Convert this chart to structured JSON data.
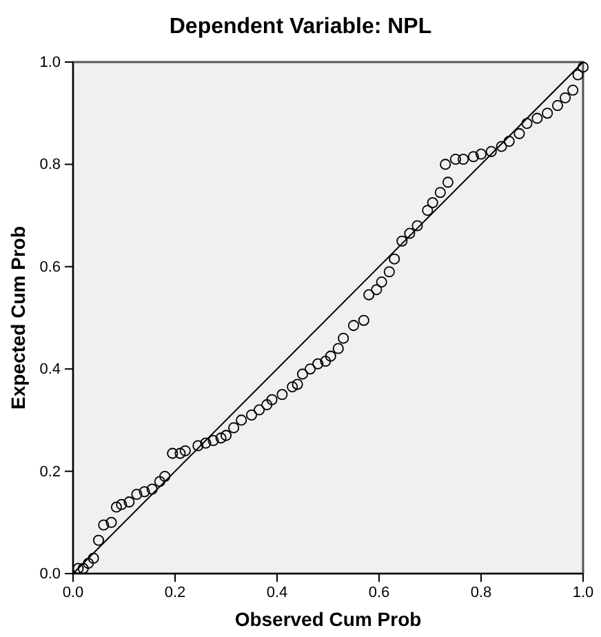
{
  "chart_data": {
    "type": "scatter",
    "title": "Dependent Variable: NPL",
    "xlabel": "Observed Cum Prob",
    "ylabel": "Expected Cum Prob",
    "xlim": [
      0,
      1
    ],
    "ylim": [
      0,
      1
    ],
    "xticks": [
      {
        "value": 0,
        "label": "0.0"
      },
      {
        "value": 0.2,
        "label": "0.2"
      },
      {
        "value": 0.4,
        "label": "0.4"
      },
      {
        "value": 0.6,
        "label": "0.6"
      },
      {
        "value": 0.8,
        "label": "0.8"
      },
      {
        "value": 1,
        "label": "1.0"
      }
    ],
    "yticks": [
      {
        "value": 0,
        "label": "0.0"
      },
      {
        "value": 0.2,
        "label": "0.2"
      },
      {
        "value": 0.4,
        "label": "0.4"
      },
      {
        "value": 0.6,
        "label": "0.6"
      },
      {
        "value": 0.8,
        "label": "0.8"
      },
      {
        "value": 1,
        "label": "1.0"
      }
    ],
    "grid": false,
    "series": [
      {
        "marker": "circle",
        "color": "#000000",
        "x": [
          0.01,
          0.02,
          0.03,
          0.04,
          0.05,
          0.06,
          0.075,
          0.085,
          0.095,
          0.11,
          0.125,
          0.14,
          0.155,
          0.17,
          0.18,
          0.195,
          0.21,
          0.22,
          0.245,
          0.26,
          0.275,
          0.29,
          0.3,
          0.315,
          0.33,
          0.35,
          0.365,
          0.38,
          0.39,
          0.41,
          0.43,
          0.44,
          0.45,
          0.465,
          0.48,
          0.495,
          0.505,
          0.52,
          0.53,
          0.55,
          0.57,
          0.58,
          0.595,
          0.605,
          0.62,
          0.63,
          0.645,
          0.66,
          0.675,
          0.695,
          0.705,
          0.72,
          0.735,
          0.73,
          0.75,
          0.765,
          0.785,
          0.8,
          0.82,
          0.84,
          0.855,
          0.875,
          0.89,
          0.91,
          0.93,
          0.95,
          0.965,
          0.98,
          0.99,
          1.0
        ],
        "values": [
          0.01,
          0.01,
          0.02,
          0.03,
          0.065,
          0.095,
          0.1,
          0.13,
          0.135,
          0.14,
          0.155,
          0.16,
          0.165,
          0.18,
          0.19,
          0.235,
          0.235,
          0.24,
          0.25,
          0.255,
          0.26,
          0.265,
          0.27,
          0.285,
          0.3,
          0.31,
          0.32,
          0.33,
          0.34,
          0.35,
          0.365,
          0.37,
          0.39,
          0.4,
          0.41,
          0.415,
          0.425,
          0.44,
          0.46,
          0.485,
          0.495,
          0.545,
          0.555,
          0.57,
          0.59,
          0.615,
          0.65,
          0.665,
          0.68,
          0.71,
          0.725,
          0.745,
          0.765,
          0.8,
          0.81,
          0.81,
          0.815,
          0.82,
          0.825,
          0.835,
          0.845,
          0.86,
          0.88,
          0.89,
          0.9,
          0.915,
          0.93,
          0.945,
          0.975,
          0.99
        ]
      },
      {
        "type": "line",
        "marker": "none",
        "color": "#000000",
        "x": [
          0,
          1
        ],
        "values": [
          0,
          1
        ]
      }
    ]
  }
}
